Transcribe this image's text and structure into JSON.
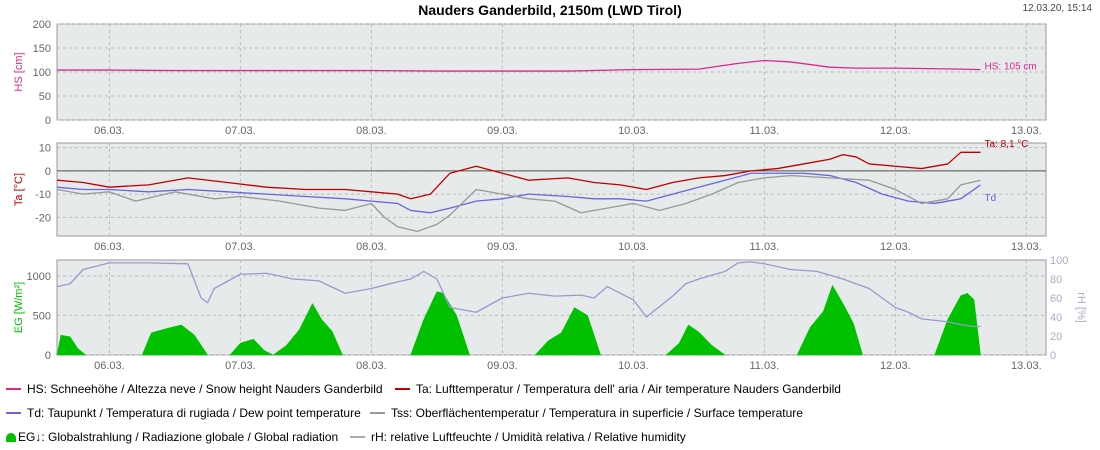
{
  "header": {
    "title": "Nauders Ganderbild, 2150m (LWD Tirol)",
    "timestamp": "12.03.20, 15:14"
  },
  "colors": {
    "hs": "#e0288c",
    "ta": "#c00000",
    "td": "#6666dd",
    "tss": "#999999",
    "eg": "#00c000",
    "rh": "#9999cc",
    "panel": "#e6eaea",
    "axis": "#666666"
  },
  "legend": [
    {
      "key": "hs",
      "label": "HS: Schneehöhe / Altezza neve / Snow height  Nauders Ganderbild",
      "color": "#e0288c",
      "shape": "line"
    },
    {
      "key": "ta",
      "label": "Ta: Lufttemperatur / Temperatura dell' aria / Air temperature  Nauders Ganderbild",
      "color": "#c00000",
      "shape": "line"
    },
    {
      "key": "td",
      "label": "Td: Taupunkt / Temperatura di rugiada / Dew point temperature",
      "color": "#6666dd",
      "shape": "line"
    },
    {
      "key": "tss",
      "label": "Tss: Oberflächentemperatur / Temperatura in superficie / Surface temperature",
      "color": "#999999",
      "shape": "line"
    },
    {
      "key": "eg",
      "label": "EG↓: Globalstrahlung / Radiazione globale / Global radiation",
      "color": "#00c000",
      "shape": "fill"
    },
    {
      "key": "rh",
      "label": "rH: relative Luftfeuchte / Umidità relativa / Relative humidity",
      "color": "#aaaaaa",
      "shape": "line"
    }
  ],
  "chart_data": [
    {
      "type": "line",
      "panel": "snow",
      "ylabel": "HS [cm]",
      "ylim": [
        0,
        200
      ],
      "yticks": [
        0,
        50,
        100,
        150,
        200
      ],
      "xlim": [
        5.6,
        13.15
      ],
      "xticks": [
        6,
        7,
        8,
        9,
        10,
        11,
        12,
        13
      ],
      "xticklabels": [
        "06.03.",
        "07.03.",
        "08.03.",
        "09.03.",
        "10.03.",
        "11.03.",
        "12.03.",
        "13.03."
      ],
      "grid": true,
      "annotations": [
        {
          "series": "HS",
          "text": "HS: 105 cm"
        }
      ],
      "series": [
        {
          "name": "HS",
          "color": "#e0288c",
          "x": [
            5.6,
            6.0,
            6.5,
            7.0,
            7.5,
            8.0,
            8.5,
            9.0,
            9.5,
            10.0,
            10.5,
            10.8,
            11.0,
            11.2,
            11.5,
            11.7,
            12.0,
            12.5,
            12.65
          ],
          "y": [
            104,
            104,
            103,
            103,
            103,
            103,
            102,
            102,
            102,
            105,
            106,
            118,
            124,
            121,
            110,
            108,
            108,
            106,
            105
          ]
        }
      ]
    },
    {
      "type": "line",
      "panel": "temperature",
      "ylabel": "Ta [°C]",
      "ylim": [
        -28,
        12
      ],
      "yticks": [
        -20,
        -10,
        0,
        10
      ],
      "xlim": [
        5.6,
        13.15
      ],
      "xticks": [
        6,
        7,
        8,
        9,
        10,
        11,
        12,
        13
      ],
      "xticklabels": [
        "06.03.",
        "07.03.",
        "08.03.",
        "09.03.",
        "10.03.",
        "11.03.",
        "12.03.",
        "13.03."
      ],
      "grid": true,
      "annotations": [
        {
          "series": "Ta",
          "text": "Ta: 8,1 °C"
        },
        {
          "series": "Td",
          "text": "Td"
        }
      ],
      "series": [
        {
          "name": "Ta",
          "color": "#c00000",
          "x": [
            5.6,
            5.8,
            6.0,
            6.3,
            6.6,
            6.9,
            7.2,
            7.5,
            7.8,
            8.0,
            8.2,
            8.3,
            8.45,
            8.6,
            8.8,
            9.0,
            9.2,
            9.5,
            9.7,
            9.9,
            10.1,
            10.3,
            10.5,
            10.7,
            10.9,
            11.1,
            11.3,
            11.5,
            11.6,
            11.7,
            11.8,
            12.0,
            12.2,
            12.4,
            12.5,
            12.65
          ],
          "y": [
            -4,
            -5,
            -7,
            -6,
            -3,
            -5,
            -7,
            -8,
            -8,
            -9,
            -10,
            -12,
            -10,
            -1,
            2,
            -1,
            -4,
            -3,
            -5,
            -6,
            -8,
            -5,
            -3,
            -2,
            0,
            1,
            3,
            5,
            7,
            6,
            3,
            2,
            1,
            3,
            8,
            8
          ]
        },
        {
          "name": "Td",
          "color": "#6666dd",
          "x": [
            5.6,
            5.8,
            6.0,
            6.3,
            6.6,
            6.9,
            7.2,
            7.5,
            7.8,
            8.0,
            8.2,
            8.3,
            8.45,
            8.6,
            8.8,
            9.0,
            9.2,
            9.5,
            9.7,
            9.9,
            10.1,
            10.3,
            10.5,
            10.7,
            10.9,
            11.1,
            11.3,
            11.5,
            11.7,
            11.9,
            12.1,
            12.3,
            12.5,
            12.65
          ],
          "y": [
            -7,
            -8,
            -8,
            -9,
            -8,
            -9,
            -10,
            -11,
            -12,
            -13,
            -14,
            -17,
            -18,
            -16,
            -13,
            -12,
            -10,
            -11,
            -12,
            -12,
            -13,
            -10,
            -7,
            -4,
            -1,
            -1,
            -1,
            -2,
            -5,
            -10,
            -13,
            -14,
            -12,
            -6
          ]
        },
        {
          "name": "Tss",
          "color": "#999999",
          "x": [
            5.6,
            5.8,
            6.0,
            6.2,
            6.5,
            6.8,
            7.0,
            7.3,
            7.6,
            7.8,
            8.0,
            8.1,
            8.2,
            8.35,
            8.5,
            8.6,
            8.8,
            9.0,
            9.2,
            9.4,
            9.6,
            9.8,
            10.0,
            10.2,
            10.4,
            10.6,
            10.8,
            11.0,
            11.2,
            11.5,
            11.8,
            12.0,
            12.2,
            12.4,
            12.5,
            12.65
          ],
          "y": [
            -8,
            -10,
            -9,
            -13,
            -9,
            -12,
            -11,
            -13,
            -16,
            -17,
            -14,
            -20,
            -24,
            -26,
            -23,
            -19,
            -8,
            -10,
            -12,
            -13,
            -18,
            -16,
            -14,
            -17,
            -14,
            -10,
            -5,
            -3,
            -2,
            -3,
            -4,
            -8,
            -14,
            -12,
            -6,
            -4
          ]
        }
      ]
    },
    {
      "type": "area",
      "panel": "radiation",
      "ylabel": "EG [W/m²]",
      "ylim": [
        0,
        1200
      ],
      "yticks": [
        0,
        500,
        1000
      ],
      "y2label": "rH [%]",
      "y2lim": [
        0,
        100
      ],
      "y2ticks": [
        0,
        20,
        40,
        60,
        80,
        100
      ],
      "xlim": [
        5.6,
        13.15
      ],
      "xticks": [
        6,
        7,
        8,
        9,
        10,
        11,
        12,
        13
      ],
      "xticklabels": [
        "06.03.",
        "07.03.",
        "08.03.",
        "09.03.",
        "10.03.",
        "11.03.",
        "12.03.",
        "13.03."
      ],
      "grid": true,
      "series": [
        {
          "name": "EG",
          "color": "#00c000",
          "axis": "left",
          "kind": "area",
          "days": [
            {
              "x": [
                5.6,
                5.63,
                5.7,
                5.76,
                5.82
              ],
              "y": [
                0,
                250,
                230,
                80,
                0
              ]
            },
            {
              "x": [
                6.25,
                6.32,
                6.45,
                6.55,
                6.65,
                6.75
              ],
              "y": [
                0,
                280,
                340,
                380,
                250,
                0
              ]
            },
            {
              "x": [
                6.92,
                7.0,
                7.1,
                7.18,
                7.25
              ],
              "y": [
                0,
                150,
                200,
                60,
                0
              ]
            },
            {
              "x": [
                7.25,
                7.35,
                7.45,
                7.55,
                7.62,
                7.7,
                7.78
              ],
              "y": [
                0,
                120,
                320,
                650,
                450,
                300,
                0
              ]
            },
            {
              "x": [
                8.3,
                8.4,
                8.5,
                8.55,
                8.65,
                8.75
              ],
              "y": [
                0,
                450,
                800,
                780,
                500,
                0
              ]
            },
            {
              "x": [
                9.25,
                9.35,
                9.45,
                9.55,
                9.65,
                9.75
              ],
              "y": [
                0,
                180,
                280,
                600,
                500,
                0
              ]
            },
            {
              "x": [
                10.25,
                10.35,
                10.42,
                10.5,
                10.6,
                10.7
              ],
              "y": [
                0,
                150,
                380,
                290,
                120,
                0
              ]
            },
            {
              "x": [
                11.25,
                11.35,
                11.45,
                11.52,
                11.6,
                11.68,
                11.75
              ],
              "y": [
                0,
                350,
                550,
                880,
                650,
                400,
                0
              ]
            },
            {
              "x": [
                12.3,
                12.4,
                12.5,
                12.55,
                12.6,
                12.65
              ],
              "y": [
                0,
                450,
                750,
                780,
                700,
                0
              ]
            }
          ]
        },
        {
          "name": "rH",
          "color": "#9999cc",
          "axis": "right",
          "kind": "line",
          "x": [
            5.6,
            5.7,
            5.8,
            6.0,
            6.3,
            6.6,
            6.7,
            6.75,
            6.8,
            7.0,
            7.2,
            7.4,
            7.6,
            7.8,
            8.0,
            8.2,
            8.3,
            8.4,
            8.5,
            8.6,
            8.8,
            9.0,
            9.2,
            9.4,
            9.6,
            9.7,
            9.8,
            10.0,
            10.1,
            10.3,
            10.4,
            10.5,
            10.7,
            10.8,
            10.9,
            11.0,
            11.2,
            11.4,
            11.6,
            11.7,
            11.8,
            11.9,
            12.0,
            12.1,
            12.2,
            12.4,
            12.5,
            12.6,
            12.65
          ],
          "y": [
            72,
            75,
            90,
            97,
            97,
            96,
            60,
            55,
            70,
            85,
            86,
            80,
            78,
            65,
            70,
            77,
            80,
            88,
            80,
            50,
            45,
            60,
            65,
            62,
            63,
            60,
            72,
            58,
            40,
            62,
            75,
            80,
            88,
            97,
            98,
            96,
            90,
            88,
            80,
            75,
            70,
            60,
            50,
            45,
            38,
            35,
            32,
            30,
            30
          ]
        }
      ]
    }
  ]
}
